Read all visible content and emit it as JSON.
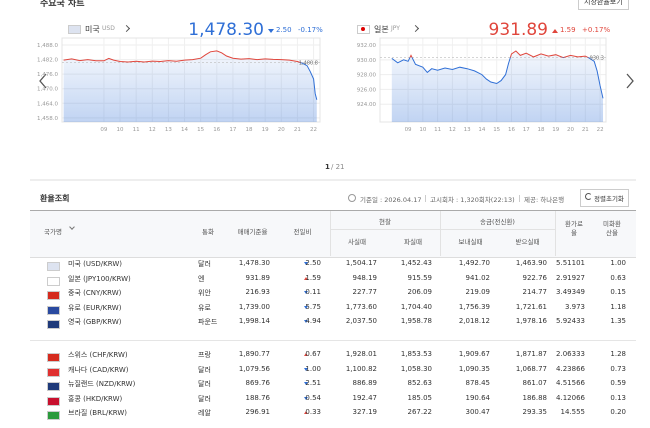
{
  "header": {
    "title": "주요국 차트",
    "button": "시장환율보기"
  },
  "colors": {
    "up": "#e0463c",
    "down": "#2f6fd6"
  },
  "panels": [
    {
      "country": "미국",
      "code": "USD",
      "price": "1,478.30",
      "change": "2.50",
      "change_pct": "-0.17%",
      "direction": "down"
    },
    {
      "country": "일본",
      "code": "JPY",
      "price": "931.89",
      "change": "1.59",
      "change_pct": "+0.17%",
      "direction": "up"
    }
  ],
  "chart_data": [
    {
      "type": "line",
      "xlim": [
        6.4,
        22.4
      ],
      "ylim": [
        1456.3,
        1490.9
      ],
      "xticks": [
        {
          "value": 9,
          "label": "09"
        },
        10,
        11,
        12,
        13,
        14,
        15,
        16,
        17,
        18,
        19,
        20,
        21,
        22
      ],
      "yticks": [
        {
          "value": 1488,
          "label": "1,488.0"
        },
        {
          "value": 1482,
          "label": "1,482.0"
        },
        {
          "value": 1476,
          "label": "1,476.0"
        },
        {
          "value": 1470,
          "label": "1,470.0"
        },
        {
          "value": 1464,
          "label": "1,464.0"
        },
        {
          "value": 1458,
          "label": "1,458.0"
        }
      ],
      "x": [
        6.5,
        7,
        7.5,
        8,
        8.5,
        9,
        9.3,
        9.6,
        10,
        10.5,
        11,
        11.5,
        12,
        12.5,
        13,
        13.5,
        14,
        14.5,
        15,
        15.3,
        15.6,
        16,
        16.3,
        16.6,
        17,
        17.5,
        18,
        18.5,
        19,
        19.5,
        20,
        20.5,
        21,
        21.3,
        21.6,
        21.8,
        22,
        22.1,
        22.2
      ],
      "values": [
        1481.8,
        1482.3,
        1481.6,
        1482.0,
        1481.5,
        1481.5,
        1482.5,
        1481.8,
        1481.2,
        1481.0,
        1481.3,
        1481.0,
        1481.4,
        1481.2,
        1481.6,
        1481.3,
        1481.8,
        1482.0,
        1482.6,
        1484.0,
        1485.2,
        1485.6,
        1484.8,
        1483.5,
        1482.6,
        1482.2,
        1482.4,
        1482.0,
        1482.3,
        1482.1,
        1482.0,
        1481.8,
        1481.2,
        1480.5,
        1479.5,
        1477.0,
        1474.0,
        1468.0,
        1465.5
      ],
      "annotation": {
        "value": 1480.8,
        "label": "1,480.8"
      }
    },
    {
      "type": "line",
      "xlim": [
        7.1,
        22.4
      ],
      "ylim": [
        921.6,
        932.95
      ],
      "xticks": [
        {
          "value": 9,
          "label": "09"
        },
        10,
        11,
        12,
        13,
        14,
        15,
        16,
        17,
        18,
        19,
        20,
        21,
        22
      ],
      "yticks": [
        {
          "value": 932,
          "label": "932.00"
        },
        {
          "value": 930,
          "label": "930.00"
        },
        {
          "value": 928,
          "label": "928.00"
        },
        {
          "value": 926,
          "label": "926.00"
        },
        {
          "value": 924,
          "label": "924.00"
        }
      ],
      "x": [
        7.9,
        8.3,
        8.7,
        9,
        9.2,
        9.5,
        10,
        10.3,
        10.6,
        11,
        11.5,
        12,
        12.5,
        13,
        13.5,
        14,
        14.3,
        14.6,
        15,
        15.3,
        15.6,
        15.8,
        16,
        16.3,
        16.6,
        17,
        17.5,
        18,
        18.5,
        19,
        19.5,
        20,
        20.5,
        21,
        21.3,
        21.6,
        21.8,
        22,
        22.2
      ],
      "values": [
        930.2,
        929.6,
        930.0,
        929.8,
        930.6,
        929.4,
        929.0,
        928.3,
        928.8,
        928.6,
        928.9,
        928.7,
        929.0,
        928.8,
        928.5,
        928.0,
        927.4,
        927.0,
        926.8,
        927.2,
        928.0,
        929.5,
        930.8,
        931.2,
        930.6,
        930.9,
        930.4,
        930.8,
        930.5,
        930.7,
        930.3,
        930.6,
        930.4,
        930.5,
        930.2,
        929.8,
        928.5,
        926.5,
        924.8
      ],
      "annotation": {
        "value": 930.3,
        "label": "930.3"
      }
    }
  ],
  "pagination": {
    "current": "1",
    "rest": "/ 21"
  },
  "table": {
    "title": "환율조회",
    "info": [
      "기준일 : 2026.04.17",
      "고시회차 : 1,320회차(22:13)",
      "제공: 하나은행"
    ],
    "reset_button": "정렬초기화",
    "headers": {
      "country": "국가명",
      "currency": "통화",
      "base": "매매기준율",
      "change": "전일비",
      "cash": "현찰",
      "cash_buy": "사실때",
      "cash_sell": "파실때",
      "wire": "송금(전신환)",
      "send": "보내실때",
      "receive": "받으실때",
      "fee_rate": "환가료율",
      "usd_rate": "미화환산율"
    },
    "groups": [
      [
        {
          "name": "미국 (USD/KRW)",
          "currency": "달러",
          "base": "1,478.30",
          "direction": "down",
          "change": "2.50",
          "cash_buy": "1,504.17",
          "cash_sell": "1,452.43",
          "send": "1,492.70",
          "receive": "1,463.90",
          "fee_rate": "5.51101",
          "usd_rate": "1.00"
        },
        {
          "name": "일본 (JPY100/KRW)",
          "currency": "엔",
          "base": "931.89",
          "direction": "up",
          "change": "1.59",
          "cash_buy": "948.19",
          "cash_sell": "915.59",
          "send": "941.02",
          "receive": "922.76",
          "fee_rate": "2.91927",
          "usd_rate": "0.63"
        },
        {
          "name": "중국 (CNY/KRW)",
          "currency": "위안",
          "base": "216.93",
          "direction": "down",
          "change": "0.11",
          "cash_buy": "227.77",
          "cash_sell": "206.09",
          "send": "219.09",
          "receive": "214.77",
          "fee_rate": "3.49349",
          "usd_rate": "0.15"
        },
        {
          "name": "유로 (EUR/KRW)",
          "currency": "유로",
          "base": "1,739.00",
          "direction": "down",
          "change": "5.75",
          "cash_buy": "1,773.60",
          "cash_sell": "1,704.40",
          "send": "1,756.39",
          "receive": "1,721.61",
          "fee_rate": "3.973",
          "usd_rate": "1.18"
        },
        {
          "name": "영국 (GBP/KRW)",
          "currency": "파운드",
          "base": "1,998.14",
          "direction": "down",
          "change": "4.94",
          "cash_buy": "2,037.50",
          "cash_sell": "1,958.78",
          "send": "2,018.12",
          "receive": "1,978.16",
          "fee_rate": "5.92433",
          "usd_rate": "1.35"
        }
      ],
      [
        {
          "name": "스위스 (CHF/KRW)",
          "currency": "프랑",
          "base": "1,890.77",
          "direction": "up",
          "change": "0.67",
          "cash_buy": "1,928.01",
          "cash_sell": "1,853.53",
          "send": "1,909.67",
          "receive": "1,871.87",
          "fee_rate": "2.06333",
          "usd_rate": "1.28"
        },
        {
          "name": "캐나다 (CAD/KRW)",
          "currency": "달러",
          "base": "1,079.56",
          "direction": "down",
          "change": "1.00",
          "cash_buy": "1,100.82",
          "cash_sell": "1,058.30",
          "send": "1,090.35",
          "receive": "1,068.77",
          "fee_rate": "4.23866",
          "usd_rate": "0.73"
        },
        {
          "name": "뉴질랜드 (NZD/KRW)",
          "currency": "달러",
          "base": "869.76",
          "direction": "down",
          "change": "2.51",
          "cash_buy": "886.89",
          "cash_sell": "852.63",
          "send": "878.45",
          "receive": "861.07",
          "fee_rate": "4.51566",
          "usd_rate": "0.59"
        },
        {
          "name": "홍콩 (HKD/KRW)",
          "currency": "달러",
          "base": "188.76",
          "direction": "down",
          "change": "0.54",
          "cash_buy": "192.47",
          "cash_sell": "185.05",
          "send": "190.64",
          "receive": "186.88",
          "fee_rate": "4.12066",
          "usd_rate": "0.13"
        },
        {
          "name": "브라질 (BRL/KRW)",
          "currency": "레알",
          "base": "296.91",
          "direction": "up",
          "change": "0.33",
          "cash_buy": "327.19",
          "cash_sell": "267.22",
          "send": "300.47",
          "receive": "293.35",
          "fee_rate": "14.555",
          "usd_rate": "0.20"
        }
      ]
    ]
  }
}
